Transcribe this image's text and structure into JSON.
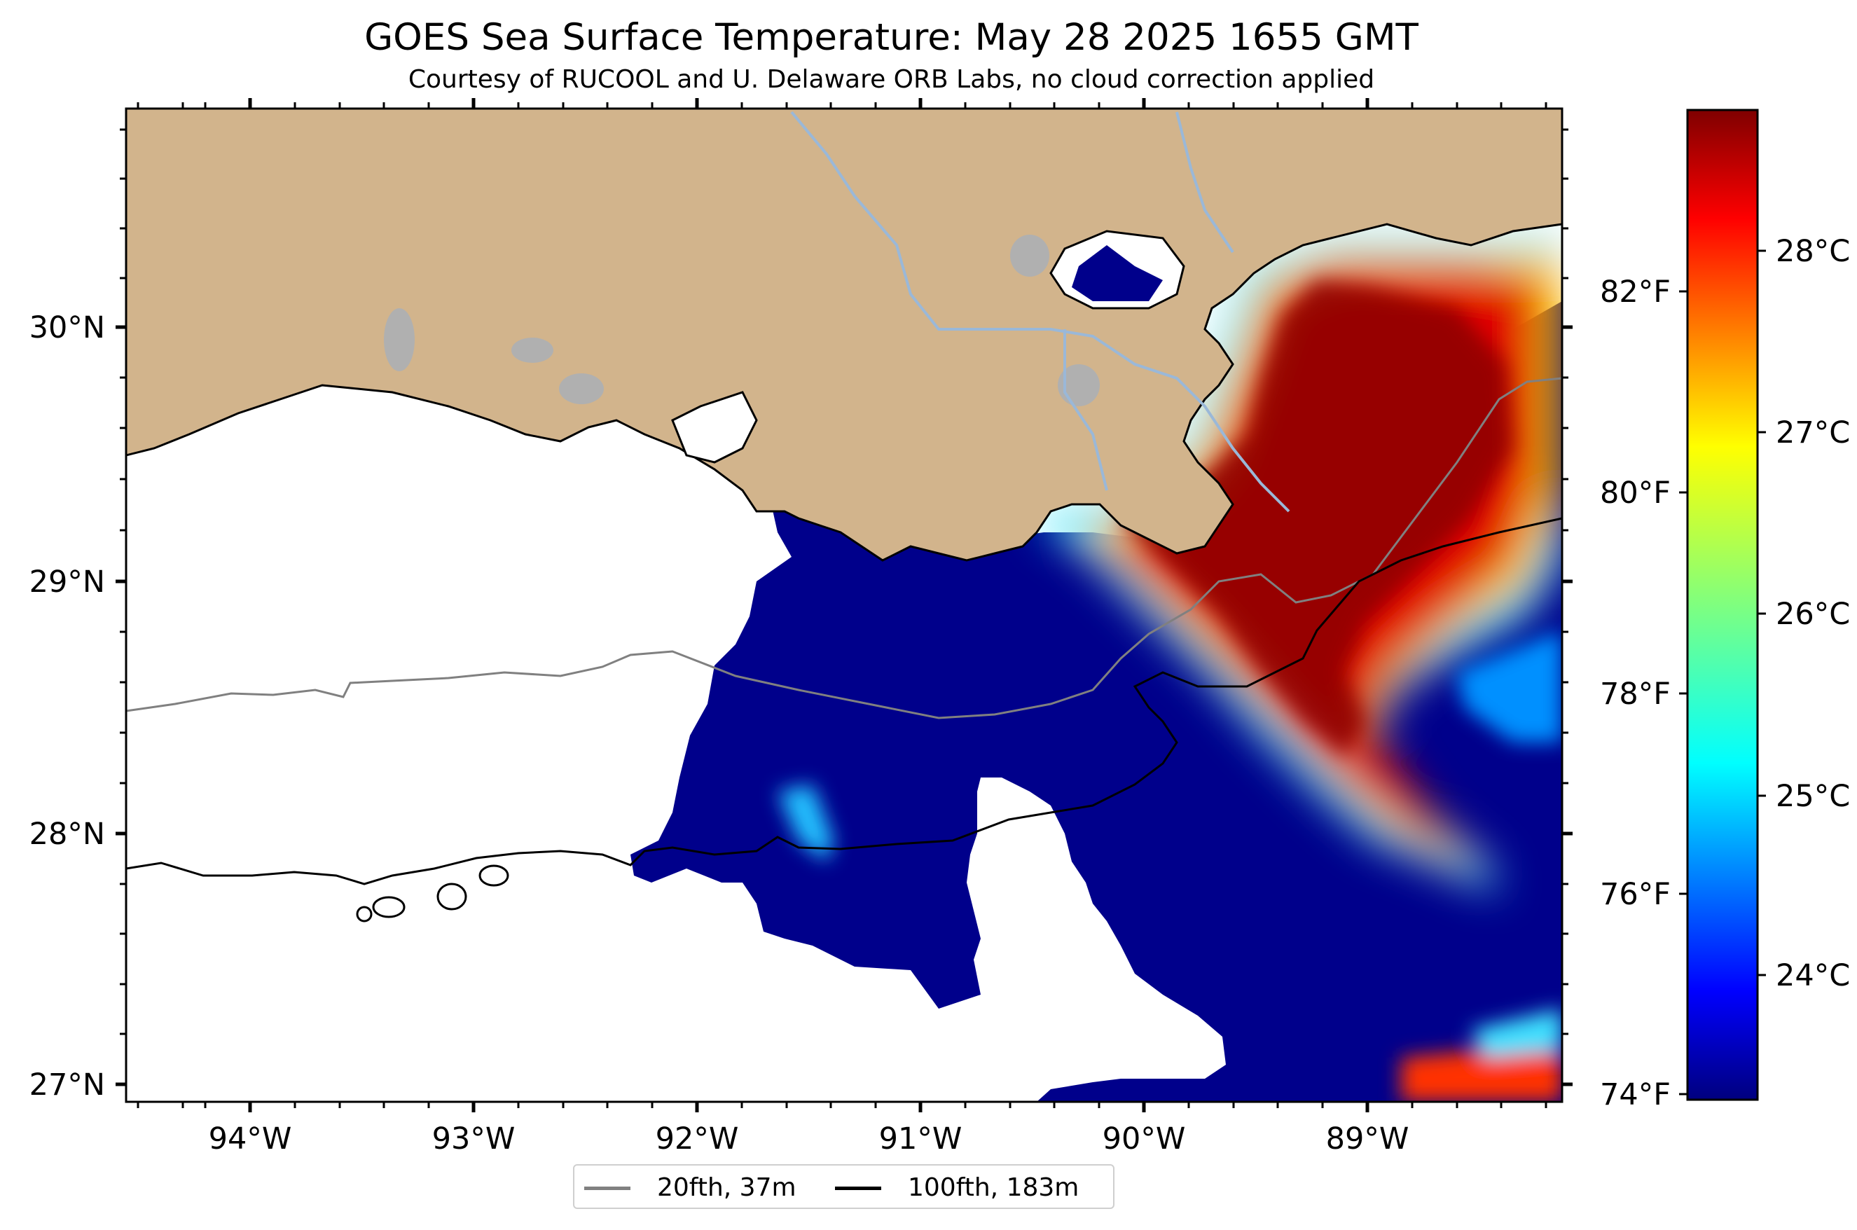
{
  "title": "GOES Sea Surface Temperature: May 28 2025 1655 GMT",
  "subtitle": "Courtesy of RUCOOL and U. Delaware ORB Labs, no cloud correction applied",
  "map": {
    "lon_labels": [
      "94°W",
      "93°W",
      "92°W",
      "91°W",
      "90°W",
      "89°W"
    ],
    "lat_labels": [
      "30°N",
      "29°N",
      "28°N",
      "27°N"
    ],
    "land_color": "#d2b48c",
    "cloud_color": "#ffffff",
    "cold_water_color": "#00008b",
    "lake_color": "#b0b0b0",
    "river_color": "#9ab8d8"
  },
  "colorbar": {
    "celsius_labels": [
      "28°C",
      "27°C",
      "26°C",
      "25°C",
      "24°C"
    ],
    "fahrenheit_labels": [
      "82°F",
      "80°F",
      "78°F",
      "76°F",
      "74°F"
    ],
    "colormap": "jet",
    "colors": [
      "#00007f",
      "#0000ff",
      "#007fff",
      "#00ffff",
      "#7fff7f",
      "#ffff00",
      "#ff7f00",
      "#ff0000",
      "#7f0000"
    ]
  },
  "legend": {
    "items": [
      {
        "label": "20fth, 37m",
        "color": "#808080"
      },
      {
        "label": "100fth, 183m",
        "color": "#000000"
      }
    ]
  }
}
